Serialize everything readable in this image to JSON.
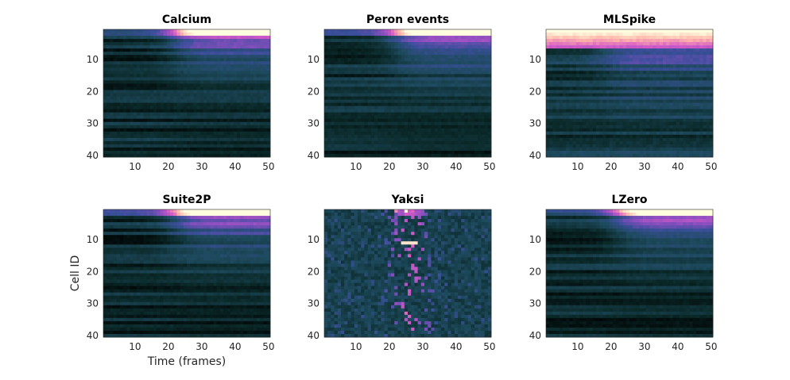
{
  "chart_data": {
    "type": "heatmap",
    "xlabel": "Time (frames)",
    "ylabel": "Cell ID",
    "n_cells": 40,
    "n_frames": 50,
    "xlim": [
      0.5,
      50.5
    ],
    "ylim": [
      0.5,
      40.5
    ],
    "y_reversed": true,
    "xticks": [
      10,
      20,
      30,
      40,
      50
    ],
    "yticks": [
      10,
      20,
      30,
      40
    ],
    "colormap": [
      "#000000",
      "#0b2a2a",
      "#1e4a5e",
      "#3a4f9a",
      "#8a4fc0",
      "#d45ac8",
      "#ffb3a8",
      "#ffffe0"
    ],
    "grid": false,
    "panels": [
      {
        "title": "Calcium",
        "pattern": "smooth",
        "peak_row": 1,
        "onset": 22
      },
      {
        "title": "Peron events",
        "pattern": "smooth",
        "peak_row": 1,
        "onset": 22
      },
      {
        "title": "MLSpike",
        "pattern": "saturated",
        "peak_row": 1,
        "onset": 18
      },
      {
        "title": "Suite2P",
        "pattern": "smooth",
        "peak_row": 1,
        "onset": 22
      },
      {
        "title": "Yaksi",
        "pattern": "sparse",
        "peak_row": 11,
        "onset": 20
      },
      {
        "title": "LZero",
        "pattern": "smooth",
        "peak_row": 1,
        "onset": 22
      }
    ]
  }
}
